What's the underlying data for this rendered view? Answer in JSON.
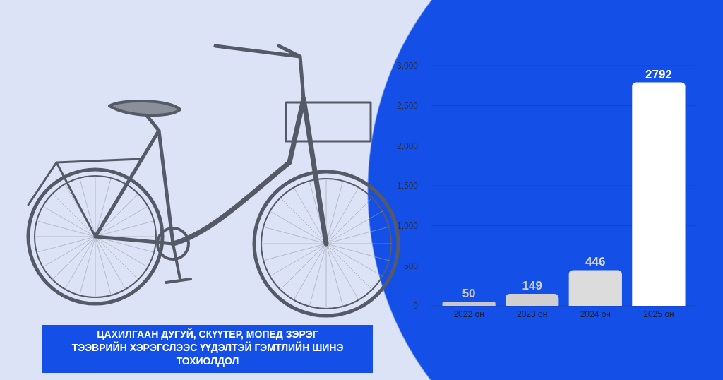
{
  "chart_data": {
    "type": "bar",
    "annotations": [
      "ЦАХИЛГААН ДУГУЙ, СКҮҮТЕР, МОПЕД ЗЭРЭГ ТЭЭВРИЙН ХЭРЭГСЛЭЭС ҮҮДЭЛТЭЙ ГЭМТЛИЙН ШИНЭ ТОХИОЛДОЛ"
    ],
    "categories": [
      "2022 он",
      "2023 он",
      "2024 он",
      "2025 он"
    ],
    "values": [
      50,
      149,
      446,
      2792
    ],
    "colors": [
      "#c8c8c8",
      "#d0d0d0",
      "#dcdcdc",
      "#ffffff"
    ],
    "ylim": [
      0,
      3000
    ],
    "yticks": [
      0,
      {
        "value": 500,
        "label": "500"
      },
      {
        "value": 1000,
        "label": "1,000"
      },
      {
        "value": 1500,
        "label": "1,500"
      },
      {
        "value": 2000,
        "label": "2,000"
      },
      {
        "value": 2500,
        "label": "2,500"
      },
      {
        "value": 3000,
        "label": "3,000"
      }
    ],
    "grid": "y",
    "data_labels": true
  }
}
